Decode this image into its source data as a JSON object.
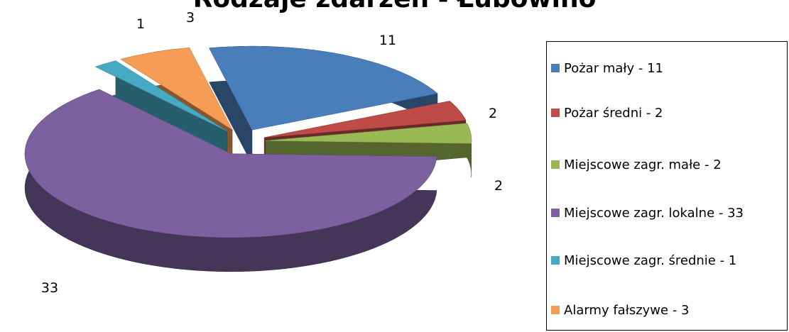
{
  "chart_data": {
    "type": "pie",
    "title": "Rodzaje zdarzeń - Łubowino",
    "three_d": true,
    "exploded": true,
    "categories": [
      "Pożar mały",
      "Pożar średni",
      "Miejscowe zagr. małe",
      "Miejscowe zagr. lokalne",
      "Miejscowe zagr. średnie",
      "Alarmy fałszywe"
    ],
    "values": [
      11,
      2,
      2,
      33,
      1,
      3
    ],
    "data_labels": [
      "11",
      "2",
      "2",
      "33",
      "1",
      "3"
    ],
    "colors": [
      "#4A7EBB",
      "#BE4B48",
      "#98B954",
      "#7D60A0",
      "#46AAC5",
      "#F59D56"
    ],
    "legend": {
      "position": "right",
      "entries": [
        "Pożar mały - 11",
        "Pożar średni - 2",
        "Miejscowe zagr. małe - 2",
        "Miejscowe zagr. lokalne - 33",
        "Miejscowe zagr. średnie - 1",
        "Alarmy fałszywe - 3"
      ]
    }
  }
}
